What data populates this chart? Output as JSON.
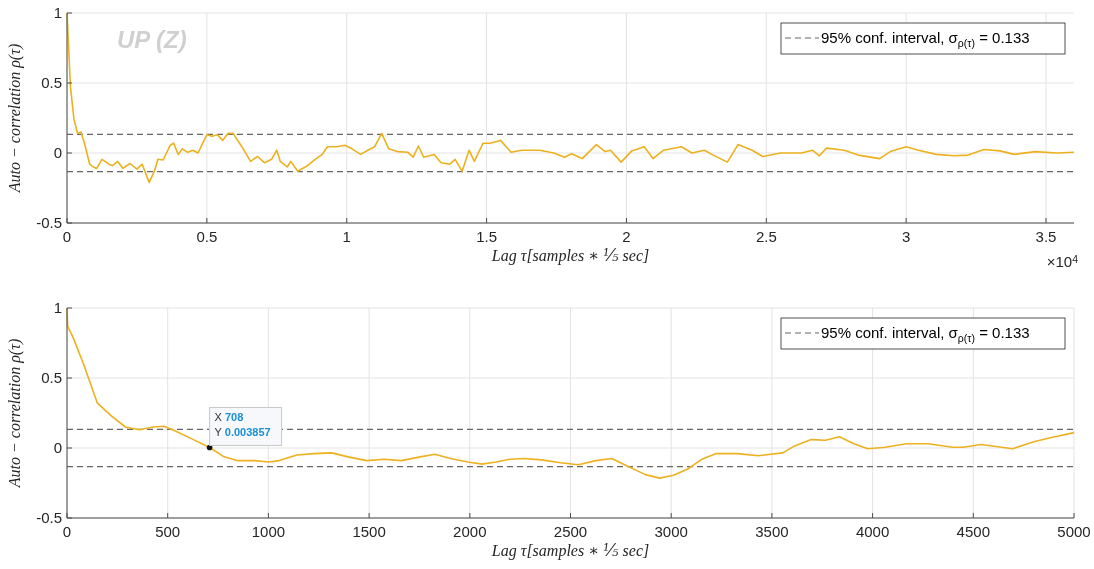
{
  "chart_data": [
    {
      "type": "line",
      "xlabel": "Lag τ[samples ∗ ⅕ sec]",
      "ylabel": "Auto − correlation ρ(τ)",
      "xlim": [
        0,
        3.6
      ],
      "ylim": [
        -0.5,
        1
      ],
      "xticks": [
        0,
        0.5,
        1,
        1.5,
        2,
        2.5,
        3,
        3.5
      ],
      "yticks": [
        -0.5,
        0,
        0.5,
        1
      ],
      "grid": true,
      "legend": "top right",
      "line_style": "solid",
      "marker": "none",
      "annotations": [
        "UP (Z)",
        "×10$^{4}$"
      ],
      "ref_lines": [
        {
          "axis": "y",
          "value": 0.133,
          "label": "95% conf. interval, σ$_{ρ(τ)}$ = 0.133",
          "color": "#666666",
          "line_style": "dashed"
        },
        {
          "axis": "y",
          "value": -0.133,
          "label": null,
          "color": "#666666",
          "line_style": "dashed"
        }
      ],
      "series": [
        {
          "color": "#edb120",
          "x": [
            0,
            0.0125,
            0.025,
            0.0375,
            0.05,
            0.0625,
            0.0812,
            0.0937,
            0.1062,
            0.125,
            0.15,
            0.1625,
            0.1812,
            0.2,
            0.225,
            0.25,
            0.2687,
            0.2937,
            0.3125,
            0.325,
            0.3437,
            0.3687,
            0.3812,
            0.3975,
            0.4125,
            0.4312,
            0.45,
            0.4687,
            0.4812,
            0.5,
            0.5187,
            0.5375,
            0.5562,
            0.575,
            0.5937,
            0.625,
            0.6562,
            0.6812,
            0.7062,
            0.7312,
            0.75,
            0.7625,
            0.7875,
            0.8,
            0.825,
            0.8562,
            0.8875,
            0.9125,
            0.9312,
            0.9625,
            0.9937,
            1.0187,
            1.05,
            1.075,
            1.1,
            1.125,
            1.15,
            1.1812,
            1.2187,
            1.2375,
            1.2562,
            1.275,
            1.3125,
            1.3375,
            1.3687,
            1.3875,
            1.4125,
            1.4375,
            1.4562,
            1.4875,
            1.5125,
            1.55,
            1.5875,
            1.625,
            1.6625,
            1.6899,
            1.7405,
            1.7785,
            1.8038,
            1.8418,
            1.8924,
            1.924,
            1.943,
            1.981,
            2.019,
            2.0633,
            2.095,
            2.133,
            2.1962,
            2.2342,
            2.2785,
            2.31,
            2.3608,
            2.3988,
            2.4494,
            2.4874,
            2.5507,
            2.6266,
            2.6646,
            2.6899,
            2.7152,
            2.7785,
            2.8291,
            2.9051,
            2.943,
            2.9999,
            3.0443,
            3.1076,
            3.1709,
            3.2215,
            3.2785,
            3.3354,
            3.3861,
            3.462,
            3.538,
            3.6
          ],
          "values": [
            1,
            0.47,
            0.24,
            0.14,
            0.15,
            0.07,
            -0.08,
            -0.1,
            -0.11,
            -0.045,
            -0.08,
            -0.09,
            -0.06,
            -0.11,
            -0.075,
            -0.115,
            -0.08,
            -0.21,
            -0.13,
            -0.045,
            -0.05,
            0.055,
            0.07,
            -0.01,
            0.03,
            0.005,
            0.02,
            0,
            0.055,
            0.13,
            0.12,
            0.13,
            0.09,
            0.14,
            0.14,
            0.045,
            -0.06,
            -0.025,
            -0.07,
            -0.045,
            0.02,
            -0.06,
            -0.1,
            -0.06,
            -0.13,
            -0.095,
            -0.045,
            -0.01,
            0.045,
            0.045,
            0.055,
            0.03,
            -0.01,
            0.02,
            0.045,
            0.14,
            0.03,
            0.01,
            0.005,
            -0.03,
            0.05,
            -0.03,
            -0.01,
            -0.07,
            -0.08,
            -0.045,
            -0.13,
            0.02,
            -0.06,
            0.07,
            0.07,
            0.09,
            0.005,
            0.02,
            0.02,
            0.02,
            0,
            -0.03,
            -0.005,
            -0.04,
            0.06,
            0.01,
            0.02,
            -0.065,
            0.015,
            0.045,
            -0.04,
            0.02,
            0.045,
            0,
            0.02,
            -0.015,
            -0.065,
            0.06,
            0.02,
            -0.025,
            0,
            0,
            0.02,
            -0.02,
            0.035,
            0.02,
            -0.015,
            -0.04,
            0.01,
            0.045,
            0.02,
            -0.01,
            -0.02,
            -0.015,
            0.025,
            0.015,
            -0.01,
            0.01,
            0,
            0.005
          ]
        }
      ]
    },
    {
      "type": "line",
      "xlabel": "Lag τ[samples ∗ ⅕ sec]",
      "ylabel": "Auto − correlation ρ(τ)",
      "xlim": [
        0,
        5000
      ],
      "ylim": [
        -0.5,
        1
      ],
      "xticks": [
        0,
        500,
        1000,
        1500,
        2000,
        2500,
        3000,
        3500,
        4000,
        4500,
        5000
      ],
      "yticks": [
        -0.5,
        0,
        0.5,
        1
      ],
      "grid": true,
      "legend": "top right",
      "line_style": "solid",
      "marker": "none",
      "annotations": [
        {
          "text": "X 708\nY 0.003857",
          "x": 708,
          "y": 0.003857
        }
      ],
      "ref_lines": [
        {
          "axis": "y",
          "value": 0.133,
          "label": "95% conf. interval, σ$_{ρ(τ)}$ = 0.133",
          "color": "#666666",
          "line_style": "dashed"
        },
        {
          "axis": "y",
          "value": -0.133,
          "label": null,
          "color": "#666666",
          "line_style": "dashed"
        }
      ],
      "series": [
        {
          "color": "#edb120",
          "x": [
            0,
            3,
            30,
            82,
            151,
            220,
            290,
            359,
            429,
            481,
            533,
            620,
            708,
            776,
            845,
            932,
            1002,
            1054,
            1141,
            1227,
            1314,
            1401,
            1488,
            1575,
            1661,
            1748,
            1826,
            1904,
            1991,
            2061,
            2130,
            2200,
            2269,
            2356,
            2451,
            2539,
            2626,
            2705,
            2784,
            2872,
            2942,
            3012,
            3082,
            3153,
            3223,
            3328,
            3433,
            3554,
            3607,
            3695,
            3766,
            3836,
            3906,
            3976,
            4063,
            4168,
            4275,
            4398,
            4450,
            4538,
            4696,
            4800,
            4888,
            5000
          ],
          "values": [
            1,
            0.87,
            0.79,
            0.6,
            0.32,
            0.23,
            0.15,
            0.13,
            0.15,
            0.155,
            0.125,
            0.065,
            0.003857,
            -0.06,
            -0.09,
            -0.09,
            -0.1,
            -0.09,
            -0.05,
            -0.04,
            -0.035,
            -0.065,
            -0.09,
            -0.08,
            -0.09,
            -0.065,
            -0.045,
            -0.075,
            -0.1,
            -0.115,
            -0.1,
            -0.08,
            -0.075,
            -0.085,
            -0.105,
            -0.12,
            -0.09,
            -0.075,
            -0.13,
            -0.19,
            -0.215,
            -0.195,
            -0.15,
            -0.08,
            -0.04,
            -0.04,
            -0.055,
            -0.035,
            0.01,
            0.06,
            0.055,
            0.08,
            0.03,
            -0.005,
            0.005,
            0.03,
            0.03,
            0.005,
            0.005,
            0.025,
            -0.005,
            0.045,
            0.075,
            0.11
          ]
        }
      ]
    }
  ]
}
